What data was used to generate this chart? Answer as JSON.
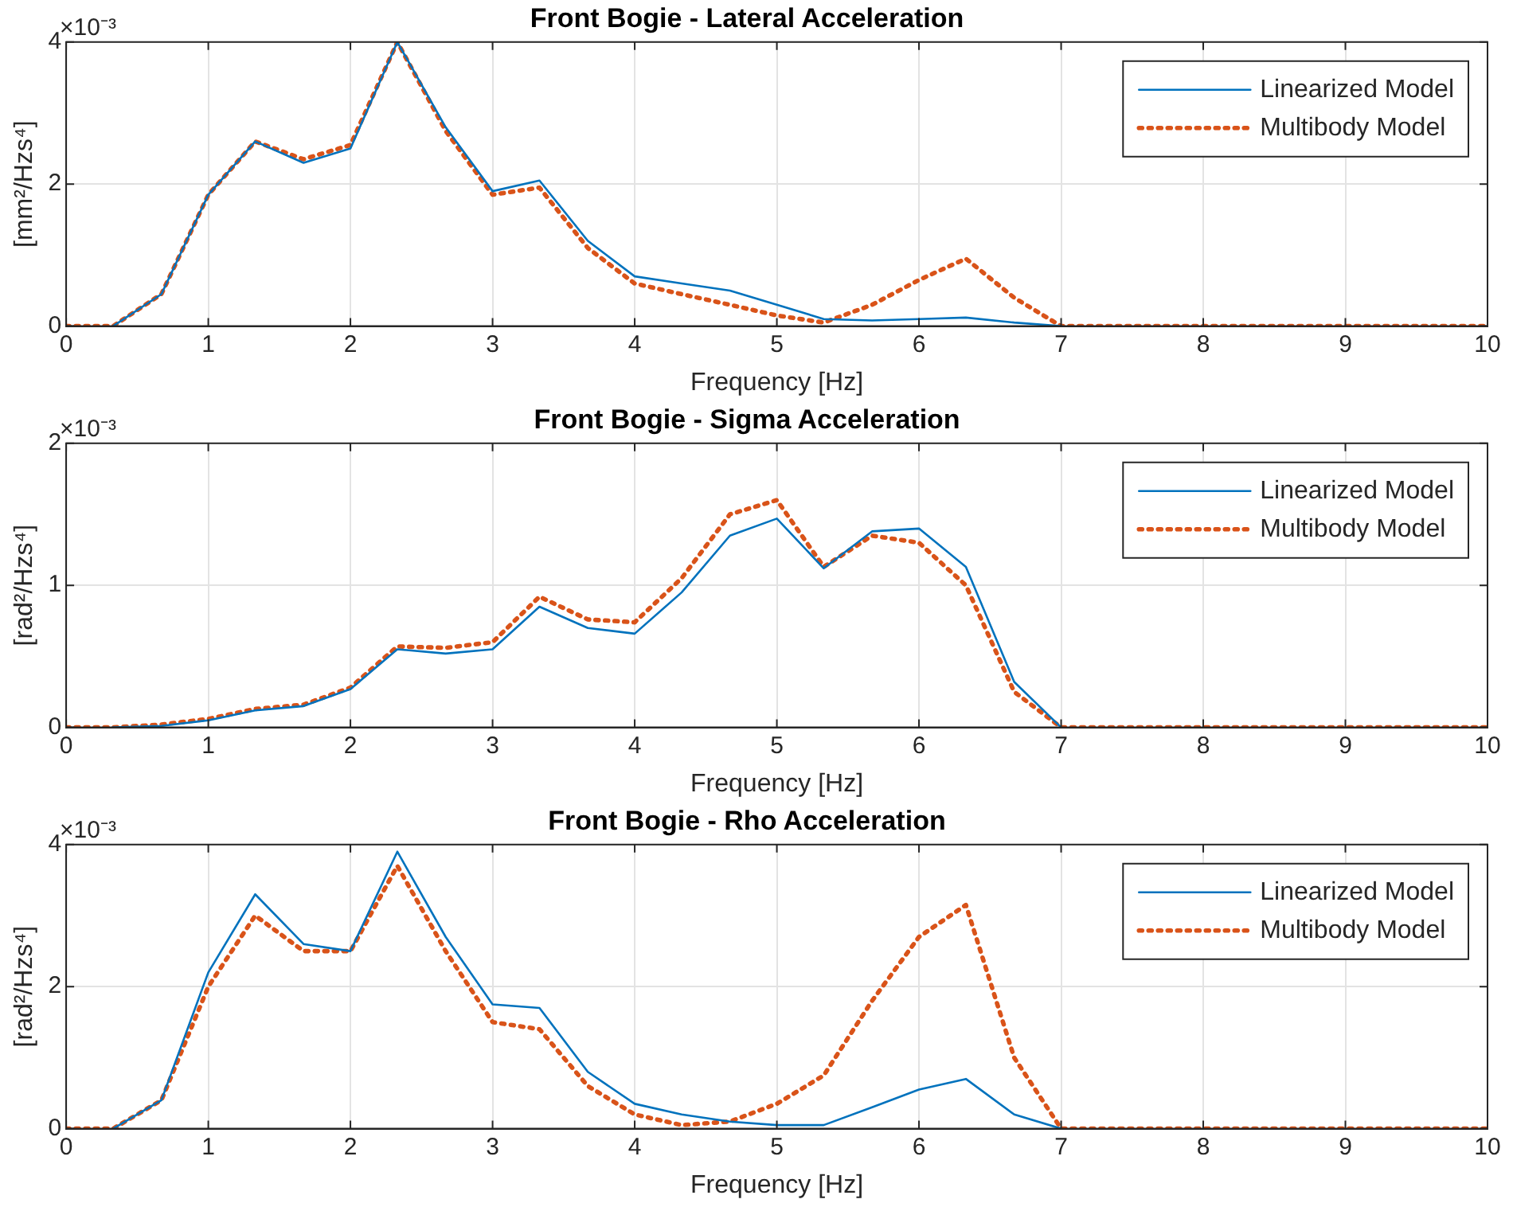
{
  "chart_data": [
    {
      "type": "line",
      "title": "Front Bogie - Lateral Acceleration",
      "xlabel": "Frequency [Hz]",
      "ylabel": "[mm²/Hzs⁴]",
      "annotations": [
        "×10⁻³"
      ],
      "x": [
        0,
        0.33,
        0.67,
        1,
        1.33,
        1.67,
        2,
        2.33,
        2.67,
        3,
        3.33,
        3.67,
        4,
        4.33,
        4.67,
        5,
        5.33,
        5.67,
        6,
        6.33,
        6.67,
        7,
        7.33,
        7.67,
        8,
        8.33,
        8.67,
        9,
        9.33,
        9.67,
        10
      ],
      "series": [
        {
          "name": "Linearized Model",
          "color": "#0072bd",
          "line_style": "solid",
          "values": [
            null,
            0,
            0.45,
            1.85,
            2.6,
            2.3,
            2.5,
            4.0,
            2.8,
            1.9,
            2.05,
            1.2,
            0.7,
            0.6,
            0.5,
            0.3,
            0.1,
            0.08,
            0.1,
            0.12,
            0.05,
            0,
            null,
            null,
            null,
            null,
            null,
            null,
            null,
            null,
            null
          ]
        },
        {
          "name": "Multibody Model",
          "color": "#d95319",
          "line_style": "dotted",
          "values": [
            0,
            0,
            0.45,
            1.85,
            2.6,
            2.35,
            2.55,
            4.0,
            2.75,
            1.85,
            1.95,
            1.1,
            0.6,
            0.45,
            0.3,
            0.15,
            0.05,
            0.3,
            0.65,
            0.95,
            0.4,
            0,
            0,
            0,
            0,
            0,
            0,
            0,
            0,
            0,
            0
          ]
        }
      ],
      "xlim": [
        0,
        10
      ],
      "xticks": [
        0,
        1,
        2,
        3,
        4,
        5,
        6,
        7,
        8,
        9,
        10
      ],
      "ylim": [
        0,
        4
      ],
      "yticks": [
        0,
        2,
        4
      ],
      "grid": true,
      "legend": "top right",
      "marker": "none"
    },
    {
      "type": "line",
      "title": "Front Bogie - Sigma Acceleration",
      "xlabel": "Frequency [Hz]",
      "ylabel": "[rad²/Hzs⁴]",
      "annotations": [
        "×10⁻³"
      ],
      "x": [
        0,
        0.33,
        0.67,
        1,
        1.33,
        1.67,
        2,
        2.33,
        2.67,
        3,
        3.33,
        3.67,
        4,
        4.33,
        4.67,
        5,
        5.33,
        5.67,
        6,
        6.33,
        6.67,
        7,
        7.33,
        7.67,
        8,
        8.33,
        8.67,
        9,
        9.33,
        9.67,
        10
      ],
      "series": [
        {
          "name": "Linearized Model",
          "color": "#0072bd",
          "line_style": "solid",
          "values": [
            null,
            0,
            0.01,
            0.05,
            0.12,
            0.15,
            0.27,
            0.55,
            0.52,
            0.55,
            0.85,
            0.7,
            0.66,
            0.95,
            1.35,
            1.47,
            1.12,
            1.38,
            1.4,
            1.13,
            0.32,
            0,
            null,
            null,
            null,
            null,
            null,
            null,
            null,
            null,
            null
          ]
        },
        {
          "name": "Multibody Model",
          "color": "#d95319",
          "line_style": "dotted",
          "values": [
            0,
            0,
            0.02,
            0.06,
            0.13,
            0.16,
            0.28,
            0.57,
            0.56,
            0.6,
            0.92,
            0.76,
            0.74,
            1.05,
            1.5,
            1.6,
            1.13,
            1.35,
            1.3,
            1.0,
            0.25,
            0,
            0,
            0,
            0,
            0,
            0,
            0,
            0,
            0,
            0
          ]
        }
      ],
      "xlim": [
        0,
        10
      ],
      "xticks": [
        0,
        1,
        2,
        3,
        4,
        5,
        6,
        7,
        8,
        9,
        10
      ],
      "ylim": [
        0,
        2
      ],
      "yticks": [
        0,
        1,
        2
      ],
      "grid": true,
      "legend": "top right",
      "marker": "none"
    },
    {
      "type": "line",
      "title": "Front Bogie - Rho Acceleration",
      "xlabel": "Frequency [Hz]",
      "ylabel": "[rad²/Hzs⁴]",
      "annotations": [
        "×10⁻³"
      ],
      "x": [
        0,
        0.33,
        0.67,
        1,
        1.33,
        1.67,
        2,
        2.33,
        2.67,
        3,
        3.33,
        3.67,
        4,
        4.33,
        4.67,
        5,
        5.33,
        5.67,
        6,
        6.33,
        6.67,
        7,
        7.33,
        7.67,
        8,
        8.33,
        8.67,
        9,
        9.33,
        9.67,
        10
      ],
      "series": [
        {
          "name": "Linearized Model",
          "color": "#0072bd",
          "line_style": "solid",
          "values": [
            null,
            0,
            0.4,
            2.2,
            3.3,
            2.6,
            2.5,
            3.9,
            2.7,
            1.75,
            1.7,
            0.8,
            0.35,
            0.2,
            0.1,
            0.05,
            0.05,
            0.3,
            0.55,
            0.7,
            0.2,
            0,
            null,
            null,
            null,
            null,
            null,
            null,
            null,
            null,
            null
          ]
        },
        {
          "name": "Multibody Model",
          "color": "#d95319",
          "line_style": "dotted",
          "values": [
            0,
            0,
            0.4,
            2.0,
            3.0,
            2.5,
            2.5,
            3.7,
            2.5,
            1.5,
            1.4,
            0.6,
            0.2,
            0.05,
            0.1,
            0.35,
            0.75,
            1.8,
            2.7,
            3.15,
            1.0,
            0,
            0,
            0,
            0,
            0,
            0,
            0,
            0,
            0,
            0
          ]
        }
      ],
      "xlim": [
        0,
        10
      ],
      "xticks": [
        0,
        1,
        2,
        3,
        4,
        5,
        6,
        7,
        8,
        9,
        10
      ],
      "ylim": [
        0,
        4
      ],
      "yticks": [
        0,
        2,
        4
      ],
      "grid": true,
      "legend": "top right",
      "marker": "none"
    }
  ]
}
